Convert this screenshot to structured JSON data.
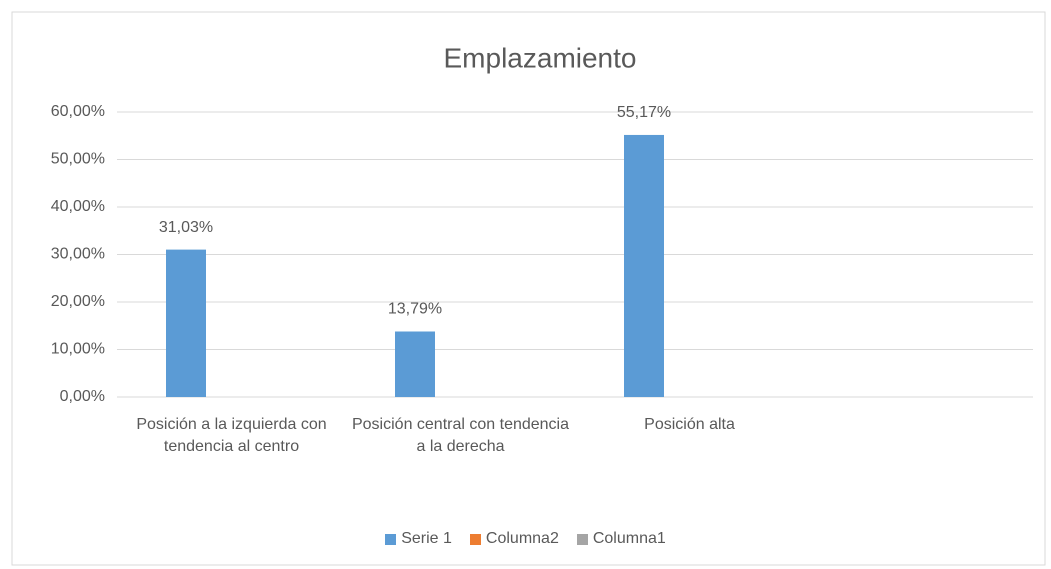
{
  "chart_data": {
    "type": "bar",
    "title": "Emplazamiento",
    "categories": [
      "Posición a la izquierda con tendencia al centro",
      "Posición central con tendencia a la derecha",
      "Posición alta",
      null
    ],
    "series": [
      {
        "name": "Serie 1",
        "color": "#5b9bd5",
        "values": [
          31.03,
          13.79,
          55.17,
          null
        ],
        "value_labels": [
          "31,03%",
          "13,79%",
          "55,17%",
          null
        ]
      },
      {
        "name": "Columna2",
        "color": "#ed7d31",
        "values": [
          null,
          null,
          null,
          null
        ]
      },
      {
        "name": "Columna1",
        "color": "#a5a5a5",
        "values": [
          null,
          null,
          null,
          null
        ]
      }
    ],
    "ylim": [
      0,
      60
    ],
    "yticks": [
      {
        "value": 0,
        "label": "0,00%"
      },
      {
        "value": 10,
        "label": "10,00%"
      },
      {
        "value": 20,
        "label": "20,00%"
      },
      {
        "value": 30,
        "label": "30,00%"
      },
      {
        "value": 40,
        "label": "40,00%"
      },
      {
        "value": 50,
        "label": "50,00%"
      },
      {
        "value": 60,
        "label": "60,00%"
      }
    ],
    "grid": true,
    "legend": "bottom"
  }
}
